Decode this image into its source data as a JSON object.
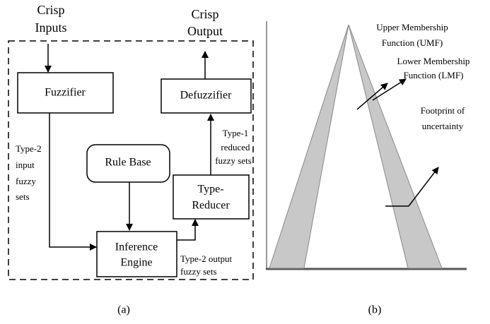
{
  "diagram_a": {
    "inputs": [
      "Crisp",
      "Inputs"
    ],
    "output": [
      "Crisp",
      "Output"
    ],
    "fuzzifier": "Fuzzifier",
    "defuzzifier": "Defuzzifier",
    "rule_base": "Rule Base",
    "inference": [
      "Inference",
      "Engine"
    ],
    "reducer": [
      "Type-",
      "Reducer"
    ],
    "input_sets": [
      "Type-2",
      "input",
      "fuzzy",
      "sets"
    ],
    "reduced_sets": [
      "Type-1",
      "reduced",
      "fuzzy sets"
    ],
    "output_sets": [
      "Type-2 output",
      "fuzzy sets"
    ],
    "caption": "(a)"
  },
  "diagram_b": {
    "umf": [
      "Upper Membership",
      "Function (UMF)"
    ],
    "lmf": [
      "Lower Membership",
      "Function (LMF)"
    ],
    "fou": [
      "Footprint of",
      "uncertainty"
    ],
    "caption": "(b)"
  }
}
